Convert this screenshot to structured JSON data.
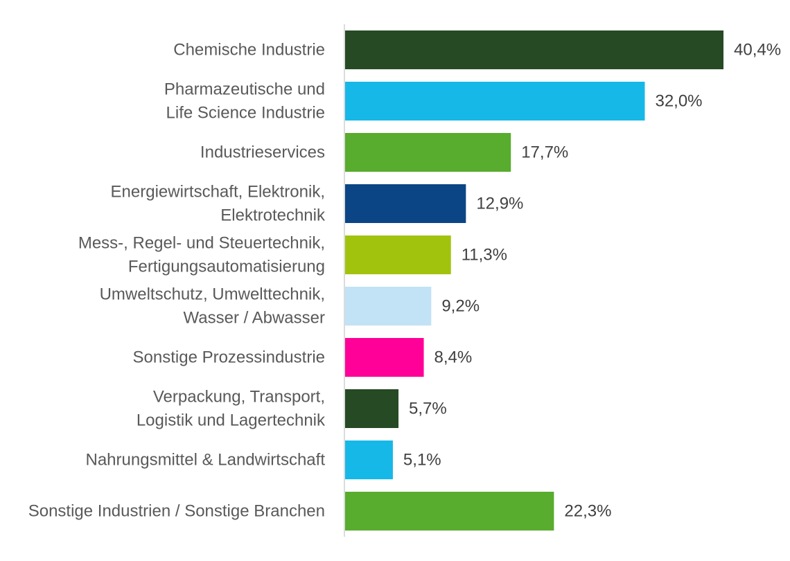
{
  "chart_data": {
    "type": "bar",
    "orientation": "horizontal",
    "title": "",
    "xlabel": "",
    "ylabel": "",
    "grid": false,
    "legend": "none",
    "value_suffix": "%",
    "xlim": [
      0,
      40.4
    ],
    "categories": [
      [
        "Chemische Industrie"
      ],
      [
        "Pharmazeutische und",
        "Life Science Industrie"
      ],
      [
        "Industrieservices"
      ],
      [
        "Energiewirtschaft, Elektronik,",
        "Elektrotechnik"
      ],
      [
        "Mess-, Regel- und Steuertechnik,",
        "Fertigungsautomatisierung"
      ],
      [
        "Umweltschutz, Umwelttechnik,",
        "Wasser / Abwasser"
      ],
      [
        "Sonstige Prozessindustrie"
      ],
      [
        "Verpackung, Transport,",
        "Logistik und Lagertechnik"
      ],
      [
        "Nahrungsmittel & Landwirtschaft"
      ],
      [
        "Sonstige Industrien / Sonstige Branchen"
      ]
    ],
    "values": [
      40.4,
      32.0,
      17.7,
      12.9,
      11.3,
      9.2,
      8.4,
      5.7,
      5.1,
      22.3
    ],
    "value_labels": [
      "40,4%",
      "32,0%",
      "17,7%",
      "12,9%",
      "11,3%",
      "9,2%",
      "8,4%",
      "5,7%",
      "5,1%",
      "22,3%"
    ],
    "colors": [
      "#254A24",
      "#16B8E8",
      "#58AC2E",
      "#0B4586",
      "#A2C30E",
      "#C1E3F5",
      "#FF0098",
      "#254A24",
      "#16B8E8",
      "#58AC2E"
    ]
  }
}
